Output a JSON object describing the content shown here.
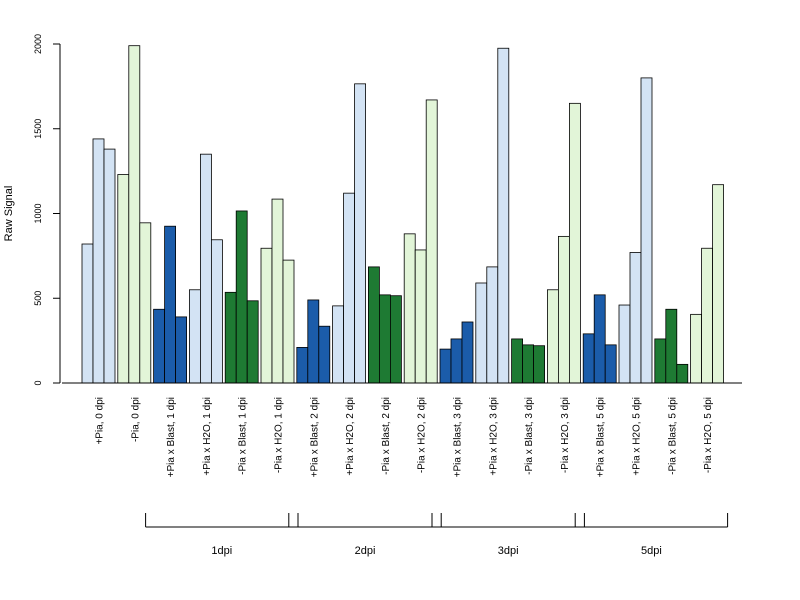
{
  "chart_data": {
    "type": "bar",
    "title": "",
    "xlabel": "",
    "ylabel": "Raw Signal",
    "ylim": [
      0,
      2000
    ],
    "yticks": [
      0,
      500,
      1000,
      1500,
      2000
    ],
    "grid": false,
    "legend": "none",
    "colors": {
      "light_blue": "#d3e3f4",
      "dark_blue": "#1b5caa",
      "dark_green": "#1e7a33",
      "light_green": "#e2f5d8"
    },
    "categories": [
      {
        "label": "+Pia, 0 dpi",
        "color": "light_blue",
        "values": [
          820,
          1440,
          1380
        ]
      },
      {
        "label": "-Pia, 0 dpi",
        "color": "light_green",
        "values": [
          1230,
          1990,
          945
        ]
      },
      {
        "label": "+Pia x Blast, 1 dpi",
        "color": "dark_blue",
        "values": [
          435,
          925,
          390
        ]
      },
      {
        "label": "+Pia x H2O, 1 dpi",
        "color": "light_blue",
        "values": [
          550,
          1350,
          845
        ]
      },
      {
        "label": "-Pia x Blast, 1 dpi",
        "color": "dark_green",
        "values": [
          535,
          1015,
          485
        ]
      },
      {
        "label": "-Pia x H2O, 1 dpi",
        "color": "light_green",
        "values": [
          795,
          1085,
          725
        ]
      },
      {
        "label": "+Pia x Blast, 2 dpi",
        "color": "dark_blue",
        "values": [
          210,
          490,
          335
        ]
      },
      {
        "label": "+Pia x H2O, 2 dpi",
        "color": "light_blue",
        "values": [
          455,
          1120,
          1765
        ]
      },
      {
        "label": "-Pia x Blast, 2 dpi",
        "color": "dark_green",
        "values": [
          685,
          520,
          515
        ]
      },
      {
        "label": "-Pia x H2O, 2 dpi",
        "color": "light_green",
        "values": [
          880,
          785,
          1670
        ]
      },
      {
        "label": "+Pia x Blast, 3 dpi",
        "color": "dark_blue",
        "values": [
          200,
          260,
          360
        ]
      },
      {
        "label": "+Pia x H2O, 3 dpi",
        "color": "light_blue",
        "values": [
          590,
          685,
          1975
        ]
      },
      {
        "label": "-Pia x Blast, 3 dpi",
        "color": "dark_green",
        "values": [
          260,
          225,
          220
        ]
      },
      {
        "label": "-Pia x H2O, 3 dpi",
        "color": "light_green",
        "values": [
          550,
          865,
          1650
        ]
      },
      {
        "label": "+Pia x Blast, 5 dpi",
        "color": "dark_blue",
        "values": [
          290,
          520,
          225
        ]
      },
      {
        "label": "+Pia x H2O, 5 dpi",
        "color": "light_blue",
        "values": [
          460,
          770,
          1800
        ]
      },
      {
        "label": "-Pia x Blast, 5 dpi",
        "color": "dark_green",
        "values": [
          260,
          435,
          110
        ]
      },
      {
        "label": "-Pia x H2O, 5 dpi",
        "color": "light_green",
        "values": [
          405,
          795,
          1170
        ]
      }
    ],
    "groups": [
      {
        "label": "1dpi",
        "from": 2,
        "to": 5
      },
      {
        "label": "2dpi",
        "from": 6,
        "to": 9
      },
      {
        "label": "3dpi",
        "from": 10,
        "to": 13
      },
      {
        "label": "5dpi",
        "from": 14,
        "to": 17
      }
    ]
  }
}
